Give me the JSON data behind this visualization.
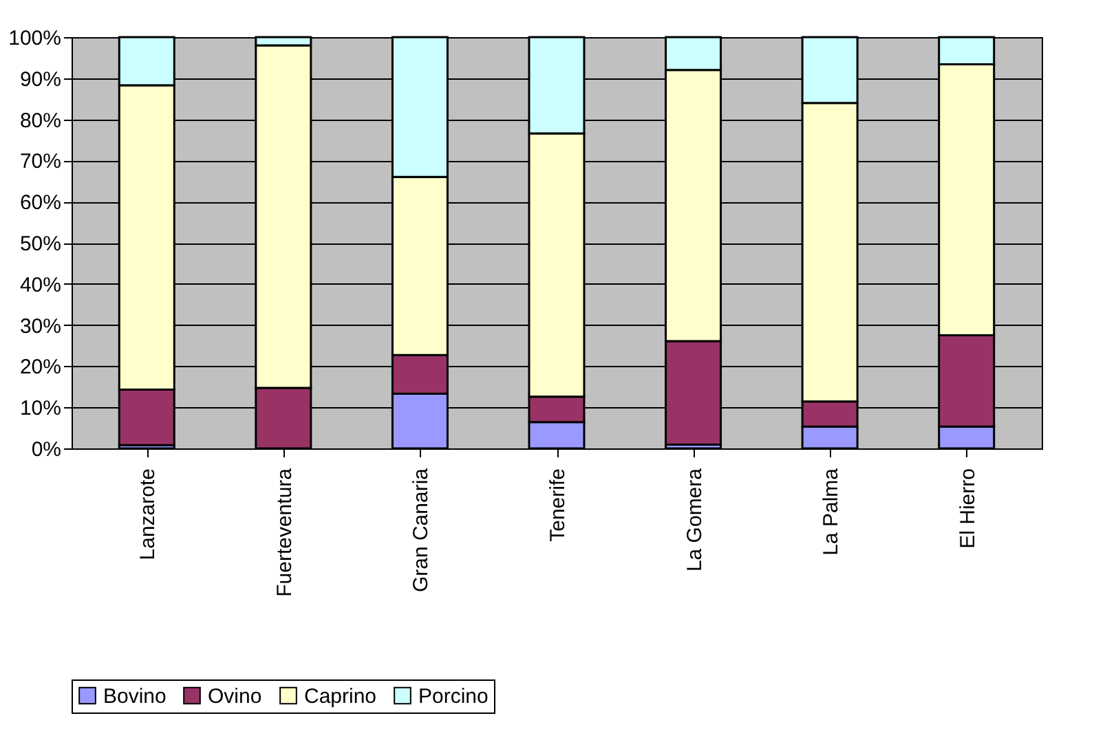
{
  "chart_data": {
    "type": "bar",
    "stacked": true,
    "categories": [
      "Lanzarote",
      "Fuerteventura",
      "Gran Canaria",
      "Tenerife",
      "La Gomera",
      "La Palma",
      "El Hierro"
    ],
    "series": [
      {
        "name": "Bovino",
        "color": "#9999ff",
        "values": [
          0.8,
          0,
          13.3,
          6.4,
          0.9,
          5.3,
          5.3
        ]
      },
      {
        "name": "Ovino",
        "color": "#993366",
        "values": [
          13.5,
          14.7,
          9.4,
          6.2,
          25.2,
          6.1,
          22.2
        ]
      },
      {
        "name": "Caprino",
        "color": "#ffffcc",
        "values": [
          74,
          83.3,
          43.3,
          64,
          65.9,
          72.6,
          65.9
        ]
      },
      {
        "name": "Porcino",
        "color": "#ccffff",
        "values": [
          11.7,
          2,
          34,
          23.4,
          8,
          16,
          6.6
        ]
      }
    ],
    "ylim": [
      0,
      100
    ],
    "yticks": [
      {
        "value": 0,
        "label": "0%"
      },
      {
        "value": 10,
        "label": "10%"
      },
      {
        "value": 20,
        "label": "20%"
      },
      {
        "value": 30,
        "label": "30%"
      },
      {
        "value": 40,
        "label": "40%"
      },
      {
        "value": 50,
        "label": "50%"
      },
      {
        "value": 60,
        "label": "60%"
      },
      {
        "value": 70,
        "label": "70%"
      },
      {
        "value": 80,
        "label": "80%"
      },
      {
        "value": 90,
        "label": "90%"
      },
      {
        "value": 100,
        "label": "100%"
      }
    ],
    "grid": "y",
    "legend": "bottom"
  }
}
